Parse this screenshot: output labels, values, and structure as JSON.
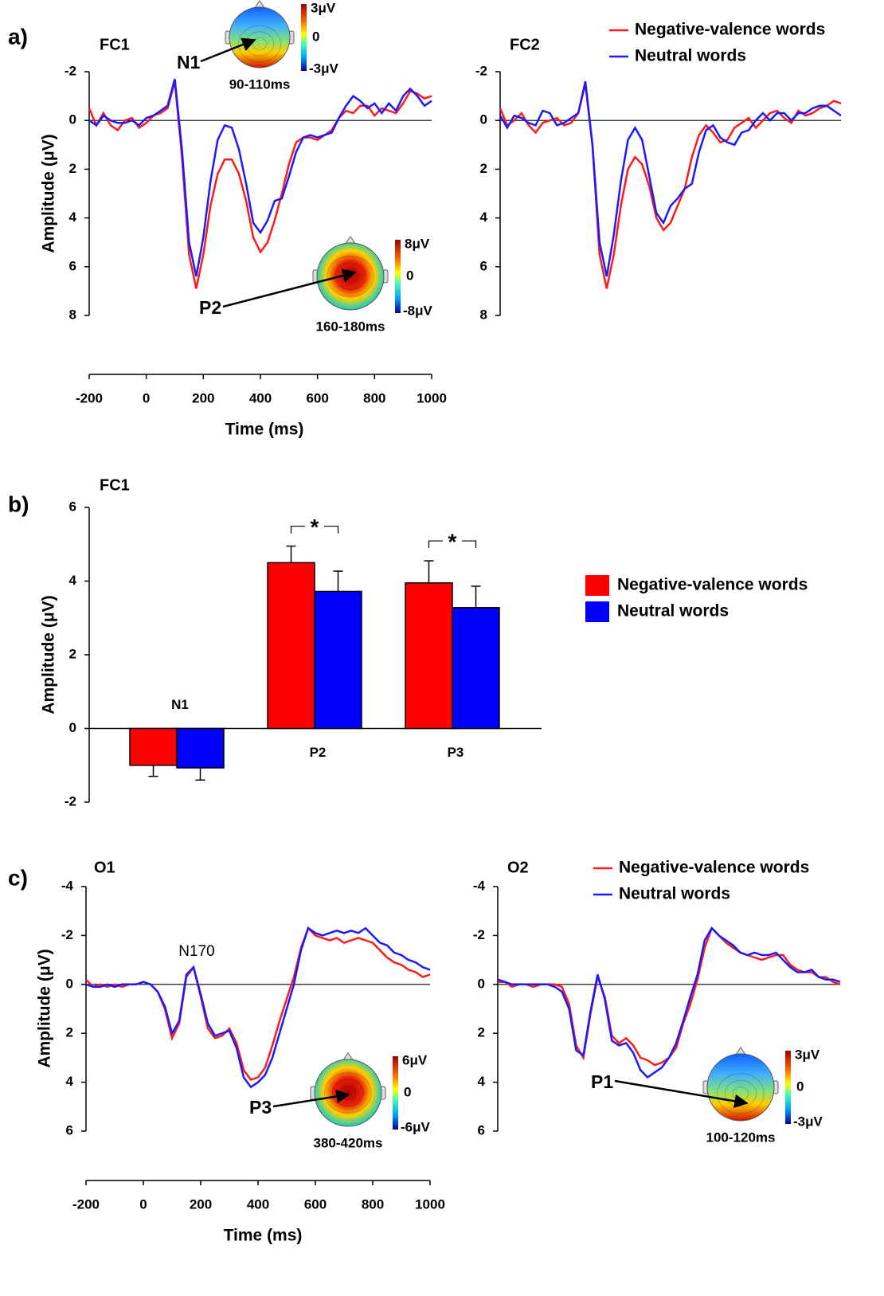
{
  "chart_data": [
    {
      "type": "line",
      "panel": "a)",
      "title": "FC1",
      "ylabel": "Amplitude (μV)",
      "xlabel": "Time (ms)",
      "x": [
        -200,
        -175,
        -150,
        -125,
        -100,
        -75,
        -50,
        -25,
        0,
        25,
        50,
        75,
        100,
        125,
        150,
        175,
        200,
        225,
        250,
        275,
        300,
        325,
        350,
        375,
        400,
        425,
        450,
        475,
        500,
        525,
        550,
        575,
        600,
        625,
        650,
        675,
        700,
        725,
        750,
        775,
        800,
        825,
        850,
        875,
        900,
        925,
        950,
        975,
        1000
      ],
      "xlim": [
        -200,
        1000
      ],
      "xticks": [
        -200,
        0,
        200,
        400,
        600,
        800,
        1000
      ],
      "ylim": [
        -2,
        8
      ],
      "yticks": [
        -2,
        0,
        2,
        4,
        6,
        8
      ],
      "invert_y": true,
      "series": [
        {
          "color": "#ff1a1a",
          "values": [
            -0.5,
            0.2,
            -0.3,
            0.2,
            0.4,
            0.0,
            -0.1,
            0.3,
            0.1,
            -0.2,
            -0.3,
            -0.5,
            -1.6,
            1.5,
            5.5,
            6.9,
            5.5,
            3.5,
            2.2,
            1.6,
            1.6,
            2.2,
            3.3,
            4.8,
            5.4,
            5.0,
            4.1,
            3.0,
            1.8,
            0.9,
            0.7,
            0.7,
            0.8,
            0.6,
            0.4,
            -0.1,
            -0.4,
            -0.3,
            -0.6,
            -0.6,
            -0.2,
            -0.5,
            -0.4,
            -0.3,
            -0.7,
            -1.2,
            -1.1,
            -0.9,
            -1.0
          ]
        },
        {
          "color": "#1a1aff",
          "values": [
            0.0,
            0.2,
            -0.2,
            0.0,
            0.1,
            0.1,
            0.0,
            0.2,
            -0.1,
            -0.2,
            -0.4,
            -0.6,
            -1.7,
            1.2,
            5.0,
            6.4,
            4.8,
            2.5,
            0.8,
            0.2,
            0.3,
            1.2,
            2.6,
            4.2,
            4.6,
            4.1,
            3.3,
            3.2,
            2.3,
            1.3,
            0.7,
            0.6,
            0.7,
            0.6,
            0.5,
            -0.1,
            -0.6,
            -1.0,
            -0.8,
            -0.5,
            -0.7,
            -0.3,
            -0.7,
            -0.4,
            -1.0,
            -1.3,
            -1.0,
            -0.6,
            -0.8
          ]
        }
      ],
      "topomaps": [
        {
          "component": "N1",
          "scale_max": "3μV",
          "scale_mid": "0",
          "scale_min": "-3μV",
          "window": "90-110ms"
        },
        {
          "component": "P2",
          "scale_max": "8μV",
          "scale_mid": "0",
          "scale_min": "-8μV",
          "window": "160-180ms"
        }
      ]
    },
    {
      "type": "line",
      "title": "FC2",
      "legend": "top-right",
      "x": [
        -200,
        -175,
        -150,
        -125,
        -100,
        -75,
        -50,
        -25,
        0,
        25,
        50,
        75,
        100,
        125,
        150,
        175,
        200,
        225,
        250,
        275,
        300,
        325,
        350,
        375,
        400,
        425,
        450,
        475,
        500,
        525,
        550,
        575,
        600,
        625,
        650,
        675,
        700,
        725,
        750,
        775,
        800,
        825,
        850,
        875,
        900,
        925,
        950,
        975,
        1000
      ],
      "xlim": [
        -200,
        1000
      ],
      "ylim": [
        -2,
        8
      ],
      "yticks": [
        -2,
        0,
        2,
        4,
        6,
        8
      ],
      "invert_y": true,
      "series": [
        {
          "name": "Negative-valence words",
          "color": "#ff1a1a",
          "values": [
            -0.5,
            0.2,
            0.0,
            -0.3,
            0.2,
            0.5,
            0.1,
            0.0,
            -0.1,
            0.2,
            0.1,
            -0.3,
            -1.5,
            1.0,
            5.5,
            6.9,
            5.5,
            3.5,
            2.0,
            1.5,
            1.8,
            2.7,
            4.0,
            4.5,
            4.2,
            3.5,
            2.8,
            1.5,
            0.6,
            0.2,
            0.5,
            0.9,
            0.8,
            0.3,
            0.1,
            -0.1,
            0.3,
            0.0,
            -0.3,
            -0.4,
            -0.1,
            0.1,
            -0.4,
            -0.2,
            -0.3,
            -0.5,
            -0.6,
            -0.8,
            -0.7
          ]
        },
        {
          "name": "Neutral words",
          "color": "#1a1aff",
          "values": [
            -0.2,
            0.3,
            -0.2,
            -0.1,
            0.1,
            0.2,
            -0.4,
            -0.3,
            0.2,
            0.1,
            -0.1,
            -0.3,
            -1.6,
            1.0,
            5.0,
            6.4,
            4.7,
            2.5,
            0.8,
            0.3,
            0.8,
            2.3,
            3.8,
            4.2,
            3.5,
            3.2,
            2.8,
            2.6,
            1.3,
            0.4,
            0.2,
            0.7,
            0.9,
            1.0,
            0.5,
            0.4,
            0.0,
            -0.3,
            0.0,
            -0.3,
            -0.3,
            0.0,
            -0.3,
            -0.3,
            -0.5,
            -0.6,
            -0.6,
            -0.4,
            -0.2
          ]
        }
      ]
    },
    {
      "type": "bar",
      "panel": "b)",
      "title": "FC1",
      "ylabel": "Amplitude (μV)",
      "legend": "right",
      "categories": [
        "N1",
        "P2",
        "P3"
      ],
      "ylim": [
        -2,
        6
      ],
      "yticks": [
        -2,
        0,
        2,
        4,
        6
      ],
      "series": [
        {
          "name": "Negative-valence words",
          "color": "#ff0000",
          "values": [
            -1.0,
            4.5,
            3.95
          ],
          "errors": [
            0.3,
            0.45,
            0.6
          ]
        },
        {
          "name": "Neutral words",
          "color": "#0000ff",
          "values": [
            -1.07,
            3.72,
            3.28
          ],
          "errors": [
            0.33,
            0.55,
            0.58
          ]
        }
      ],
      "annotations": [
        {
          "category": "P2",
          "text": "*"
        },
        {
          "category": "P3",
          "text": "*"
        }
      ]
    },
    {
      "type": "line",
      "panel": "c)",
      "title": "O1",
      "ylabel": "Amplitude (μV)",
      "xlabel": "Time (ms)",
      "x": [
        -200,
        -175,
        -150,
        -125,
        -100,
        -75,
        -50,
        -25,
        0,
        25,
        50,
        75,
        100,
        125,
        150,
        175,
        200,
        225,
        250,
        275,
        300,
        325,
        350,
        375,
        400,
        425,
        450,
        475,
        500,
        525,
        550,
        575,
        600,
        625,
        650,
        675,
        700,
        725,
        750,
        775,
        800,
        825,
        850,
        875,
        900,
        925,
        950,
        975,
        1000
      ],
      "xlim": [
        -200,
        1000
      ],
      "xticks": [
        -200,
        0,
        200,
        400,
        600,
        800,
        1000
      ],
      "ylim": [
        -4,
        6
      ],
      "yticks": [
        -4,
        -2,
        0,
        2,
        4,
        6
      ],
      "invert_y": true,
      "series": [
        {
          "color": "#ff1a1a",
          "values": [
            -0.2,
            0.1,
            0.0,
            0.1,
            0.0,
            0.1,
            0.0,
            0.0,
            -0.1,
            0.0,
            0.3,
            1.0,
            2.2,
            1.6,
            -0.3,
            -0.7,
            0.5,
            1.8,
            2.2,
            2.1,
            1.8,
            2.4,
            3.5,
            3.9,
            3.8,
            3.4,
            2.5,
            1.5,
            0.6,
            -0.3,
            -1.5,
            -2.3,
            -2.0,
            -1.9,
            -1.8,
            -1.9,
            -1.7,
            -1.8,
            -1.9,
            -1.8,
            -1.7,
            -1.4,
            -1.1,
            -0.9,
            -0.8,
            -0.6,
            -0.5,
            -0.3,
            -0.4
          ]
        },
        {
          "color": "#1a1aff",
          "values": [
            0.0,
            0.1,
            0.1,
            0.0,
            0.1,
            0.0,
            0.0,
            0.0,
            -0.1,
            0.0,
            0.3,
            0.9,
            2.0,
            1.5,
            -0.4,
            -0.7,
            0.4,
            1.6,
            2.1,
            2.0,
            1.9,
            2.6,
            3.8,
            4.2,
            4.0,
            3.7,
            3.0,
            2.0,
            1.0,
            0.0,
            -1.4,
            -2.3,
            -2.1,
            -2.0,
            -2.1,
            -2.2,
            -2.1,
            -2.2,
            -2.1,
            -2.3,
            -2.0,
            -1.7,
            -1.6,
            -1.3,
            -1.2,
            -1.0,
            -0.9,
            -0.7,
            -0.6
          ]
        }
      ],
      "annotations": [
        {
          "text": "N170"
        }
      ],
      "topomaps": [
        {
          "component": "P3",
          "scale_max": "6μV",
          "scale_mid": "0",
          "scale_min": "-6μV",
          "window": "380-420ms"
        }
      ]
    },
    {
      "type": "line",
      "title": "O2",
      "legend": "top-right",
      "x": [
        -200,
        -175,
        -150,
        -125,
        -100,
        -75,
        -50,
        -25,
        0,
        25,
        50,
        75,
        100,
        125,
        150,
        175,
        200,
        225,
        250,
        275,
        300,
        325,
        350,
        375,
        400,
        425,
        450,
        475,
        500,
        525,
        550,
        575,
        600,
        625,
        650,
        675,
        700,
        725,
        750,
        775,
        800,
        825,
        850,
        875,
        900,
        925,
        950,
        975,
        1000
      ],
      "xlim": [
        -200,
        1000
      ],
      "ylim": [
        -4,
        6
      ],
      "yticks": [
        -4,
        -2,
        0,
        2,
        4,
        6
      ],
      "invert_y": true,
      "series": [
        {
          "name": "Negative-valence words",
          "color": "#ff1a1a",
          "values": [
            -0.1,
            -0.1,
            0.1,
            0.0,
            0.0,
            0.1,
            0.0,
            0.0,
            0.0,
            0.1,
            0.8,
            2.5,
            3.0,
            1.2,
            -0.3,
            0.5,
            2.1,
            2.4,
            2.2,
            2.5,
            3.0,
            3.1,
            3.3,
            3.2,
            3.0,
            2.6,
            1.6,
            0.8,
            -0.2,
            -1.5,
            -2.3,
            -2.0,
            -1.7,
            -1.5,
            -1.3,
            -1.2,
            -1.1,
            -1.0,
            -1.1,
            -1.2,
            -1.2,
            -0.8,
            -0.6,
            -0.5,
            -0.5,
            -0.3,
            -0.3,
            -0.1,
            0.0
          ]
        },
        {
          "name": "Neutral words",
          "color": "#1a1aff",
          "values": [
            -0.2,
            -0.1,
            0.0,
            0.0,
            0.0,
            0.0,
            0.0,
            0.0,
            0.1,
            0.3,
            1.0,
            2.7,
            2.9,
            1.1,
            -0.4,
            0.6,
            2.3,
            2.5,
            2.4,
            2.8,
            3.5,
            3.8,
            3.6,
            3.4,
            3.0,
            2.4,
            1.5,
            0.5,
            -0.4,
            -1.8,
            -2.3,
            -2.0,
            -1.8,
            -1.6,
            -1.3,
            -1.2,
            -1.3,
            -1.2,
            -1.2,
            -1.3,
            -1.0,
            -0.7,
            -0.5,
            -0.5,
            -0.6,
            -0.3,
            -0.2,
            -0.2,
            -0.1
          ]
        }
      ],
      "topomaps": [
        {
          "component": "P1",
          "scale_max": "3μV",
          "scale_mid": "0",
          "scale_min": "-3μV",
          "window": "100-120ms"
        }
      ]
    }
  ]
}
